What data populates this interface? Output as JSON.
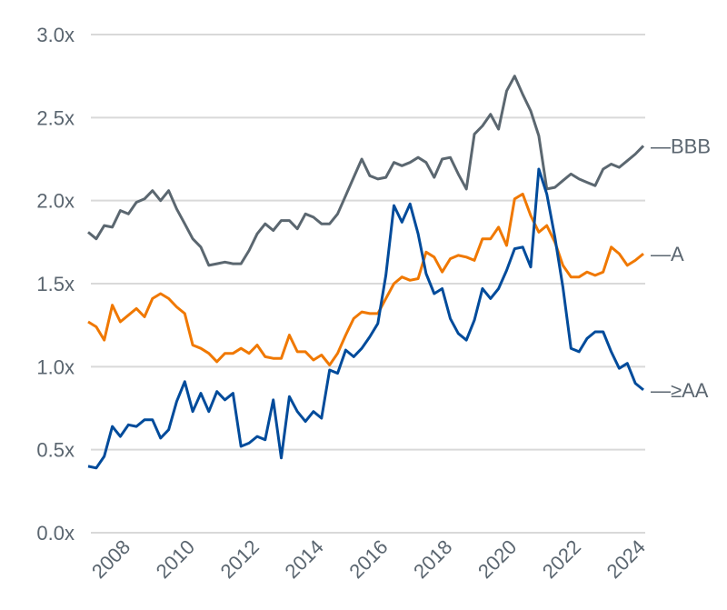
{
  "chart_data": {
    "type": "line",
    "title": "",
    "xlabel": "",
    "ylabel": "",
    "ylim": [
      0,
      3.0
    ],
    "xlim": [
      2007.5,
      2024.75
    ],
    "grid": true,
    "legend": "inline-right",
    "y_ticks": [
      "0.0x",
      "0.5x",
      "1.0x",
      "1.5x",
      "2.0x",
      "2.5x",
      "3.0x"
    ],
    "y_tick_values": [
      0,
      0.5,
      1.0,
      1.5,
      2.0,
      2.5,
      3.0
    ],
    "x_ticks": [
      "2008",
      "2010",
      "2012",
      "2014",
      "2016",
      "2018",
      "2020",
      "2022",
      "2024"
    ],
    "x_tick_values": [
      2008,
      2010,
      2012,
      2014,
      2016,
      2018,
      2020,
      2022,
      2024
    ],
    "x": [
      2007.5,
      2007.75,
      2008,
      2008.25,
      2008.5,
      2008.75,
      2009,
      2009.25,
      2009.5,
      2009.75,
      2010,
      2010.25,
      2010.5,
      2010.75,
      2011,
      2011.25,
      2011.5,
      2011.75,
      2012,
      2012.25,
      2012.5,
      2012.75,
      2013,
      2013.25,
      2013.5,
      2013.75,
      2014,
      2014.25,
      2014.5,
      2014.75,
      2015,
      2015.25,
      2015.5,
      2015.75,
      2016,
      2016.25,
      2016.5,
      2016.75,
      2017,
      2017.25,
      2017.5,
      2017.75,
      2018,
      2018.25,
      2018.5,
      2018.75,
      2019,
      2019.25,
      2019.5,
      2019.75,
      2020,
      2020.25,
      2020.5,
      2020.75,
      2021,
      2021.25,
      2021.5,
      2021.75,
      2022,
      2022.25,
      2022.5,
      2022.75,
      2023,
      2023.25,
      2023.5,
      2023.75,
      2024,
      2024.25,
      2024.5,
      2024.75
    ],
    "series": [
      {
        "name": "BBB",
        "label": "—BBB",
        "color": "#5b6770",
        "values": [
          1.81,
          1.77,
          1.85,
          1.84,
          1.94,
          1.92,
          1.99,
          2.01,
          2.06,
          2.0,
          2.06,
          1.95,
          1.86,
          1.77,
          1.72,
          1.61,
          1.62,
          1.63,
          1.62,
          1.62,
          1.7,
          1.8,
          1.86,
          1.82,
          1.88,
          1.88,
          1.83,
          1.92,
          1.9,
          1.86,
          1.86,
          1.92,
          2.03,
          2.14,
          2.25,
          2.15,
          2.13,
          2.14,
          2.23,
          2.21,
          2.23,
          2.26,
          2.23,
          2.14,
          2.25,
          2.26,
          2.16,
          2.07,
          2.4,
          2.45,
          2.52,
          2.43,
          2.66,
          2.75,
          2.64,
          2.54,
          2.39,
          2.07,
          2.08,
          2.12,
          2.16,
          2.13,
          2.11,
          2.09,
          2.19,
          2.22,
          2.2,
          2.24,
          2.28,
          2.33
        ]
      },
      {
        "name": "A",
        "label": "—A",
        "color": "#f07800",
        "values": [
          1.27,
          1.24,
          1.16,
          1.37,
          1.27,
          1.31,
          1.35,
          1.3,
          1.41,
          1.44,
          1.41,
          1.36,
          1.32,
          1.13,
          1.11,
          1.08,
          1.03,
          1.08,
          1.08,
          1.11,
          1.08,
          1.13,
          1.06,
          1.05,
          1.05,
          1.19,
          1.09,
          1.09,
          1.04,
          1.07,
          1.01,
          1.08,
          1.19,
          1.29,
          1.33,
          1.32,
          1.32,
          1.41,
          1.5,
          1.54,
          1.52,
          1.53,
          1.69,
          1.66,
          1.57,
          1.65,
          1.67,
          1.66,
          1.64,
          1.77,
          1.77,
          1.84,
          1.73,
          2.01,
          2.04,
          1.91,
          1.81,
          1.85,
          1.75,
          1.61,
          1.54,
          1.54,
          1.57,
          1.55,
          1.57,
          1.72,
          1.68,
          1.61,
          1.64,
          1.68
        ]
      },
      {
        "name": "≥AA",
        "label": "—≥AA",
        "color": "#004b9b",
        "values": [
          0.4,
          0.39,
          0.46,
          0.64,
          0.58,
          0.65,
          0.64,
          0.68,
          0.68,
          0.57,
          0.62,
          0.79,
          0.91,
          0.73,
          0.84,
          0.73,
          0.85,
          0.8,
          0.84,
          0.52,
          0.54,
          0.58,
          0.56,
          0.8,
          0.45,
          0.82,
          0.73,
          0.67,
          0.73,
          0.69,
          0.98,
          0.96,
          1.1,
          1.06,
          1.11,
          1.18,
          1.26,
          1.55,
          1.97,
          1.87,
          1.98,
          1.8,
          1.56,
          1.44,
          1.47,
          1.29,
          1.2,
          1.16,
          1.28,
          1.47,
          1.41,
          1.47,
          1.58,
          1.71,
          1.72,
          1.6,
          2.19,
          2.04,
          1.78,
          1.48,
          1.11,
          1.09,
          1.17,
          1.21,
          1.21,
          1.09,
          0.99,
          1.02,
          0.9,
          0.86
        ]
      }
    ],
    "colors": {
      "grid": "#d9d9d9",
      "tick_text": "#5b6670"
    }
  }
}
